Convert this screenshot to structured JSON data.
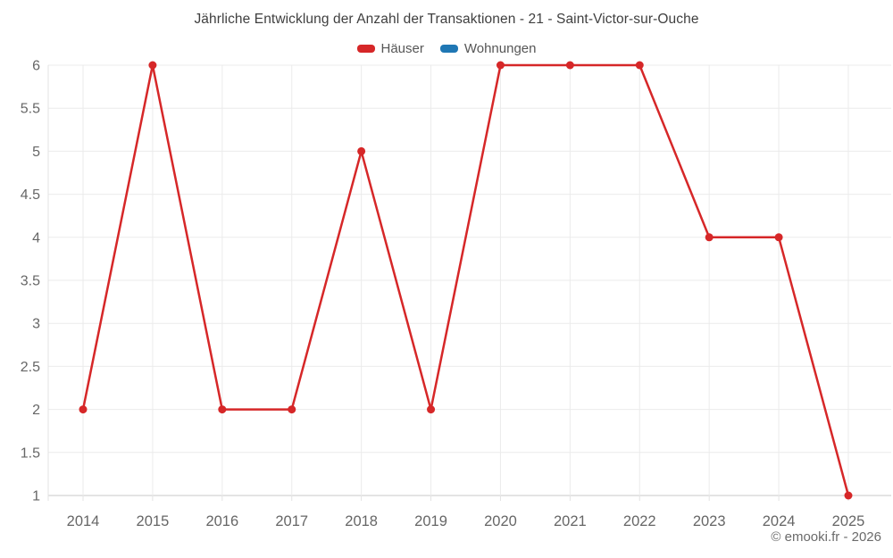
{
  "title": "Jährliche Entwicklung der Anzahl der Transaktionen - 21 - Saint-Victor-sur-Ouche",
  "legend": {
    "items": [
      {
        "label": "Häuser",
        "color": "#d62728"
      },
      {
        "label": "Wohnungen",
        "color": "#1f77b4"
      }
    ]
  },
  "copyright": "© emooki.fr - 2026",
  "colors": {
    "haeuser_red": "#d62728",
    "wohnungen_blue": "#1f77b4",
    "gridline": "#ebebeb",
    "axis_line": "#c9c9c9",
    "tick": "#e3e3e3",
    "tick_label": "#666666"
  },
  "chart_data": {
    "type": "line",
    "title": "Jährliche Entwicklung der Anzahl der Transaktionen - 21 - Saint-Victor-sur-Ouche",
    "categories": [
      "2014",
      "2015",
      "2016",
      "2017",
      "2018",
      "2019",
      "2020",
      "2021",
      "2022",
      "2023",
      "2024",
      "2025"
    ],
    "series": [
      {
        "name": "Häuser",
        "color": "#d62728",
        "values": [
          2,
          6,
          2,
          2,
          5,
          2,
          6,
          6,
          6,
          4,
          4,
          1
        ]
      },
      {
        "name": "Wohnungen",
        "color": "#1f77b4",
        "values": []
      }
    ],
    "xlabel": "",
    "ylabel": "",
    "ylim": [
      1,
      6
    ],
    "ytick_step": 0.5,
    "yticks": [
      1,
      1.5,
      2,
      2.5,
      3,
      3.5,
      4,
      4.5,
      5,
      5.5,
      6
    ],
    "grid": true,
    "legend_position": "top",
    "markers": true
  }
}
